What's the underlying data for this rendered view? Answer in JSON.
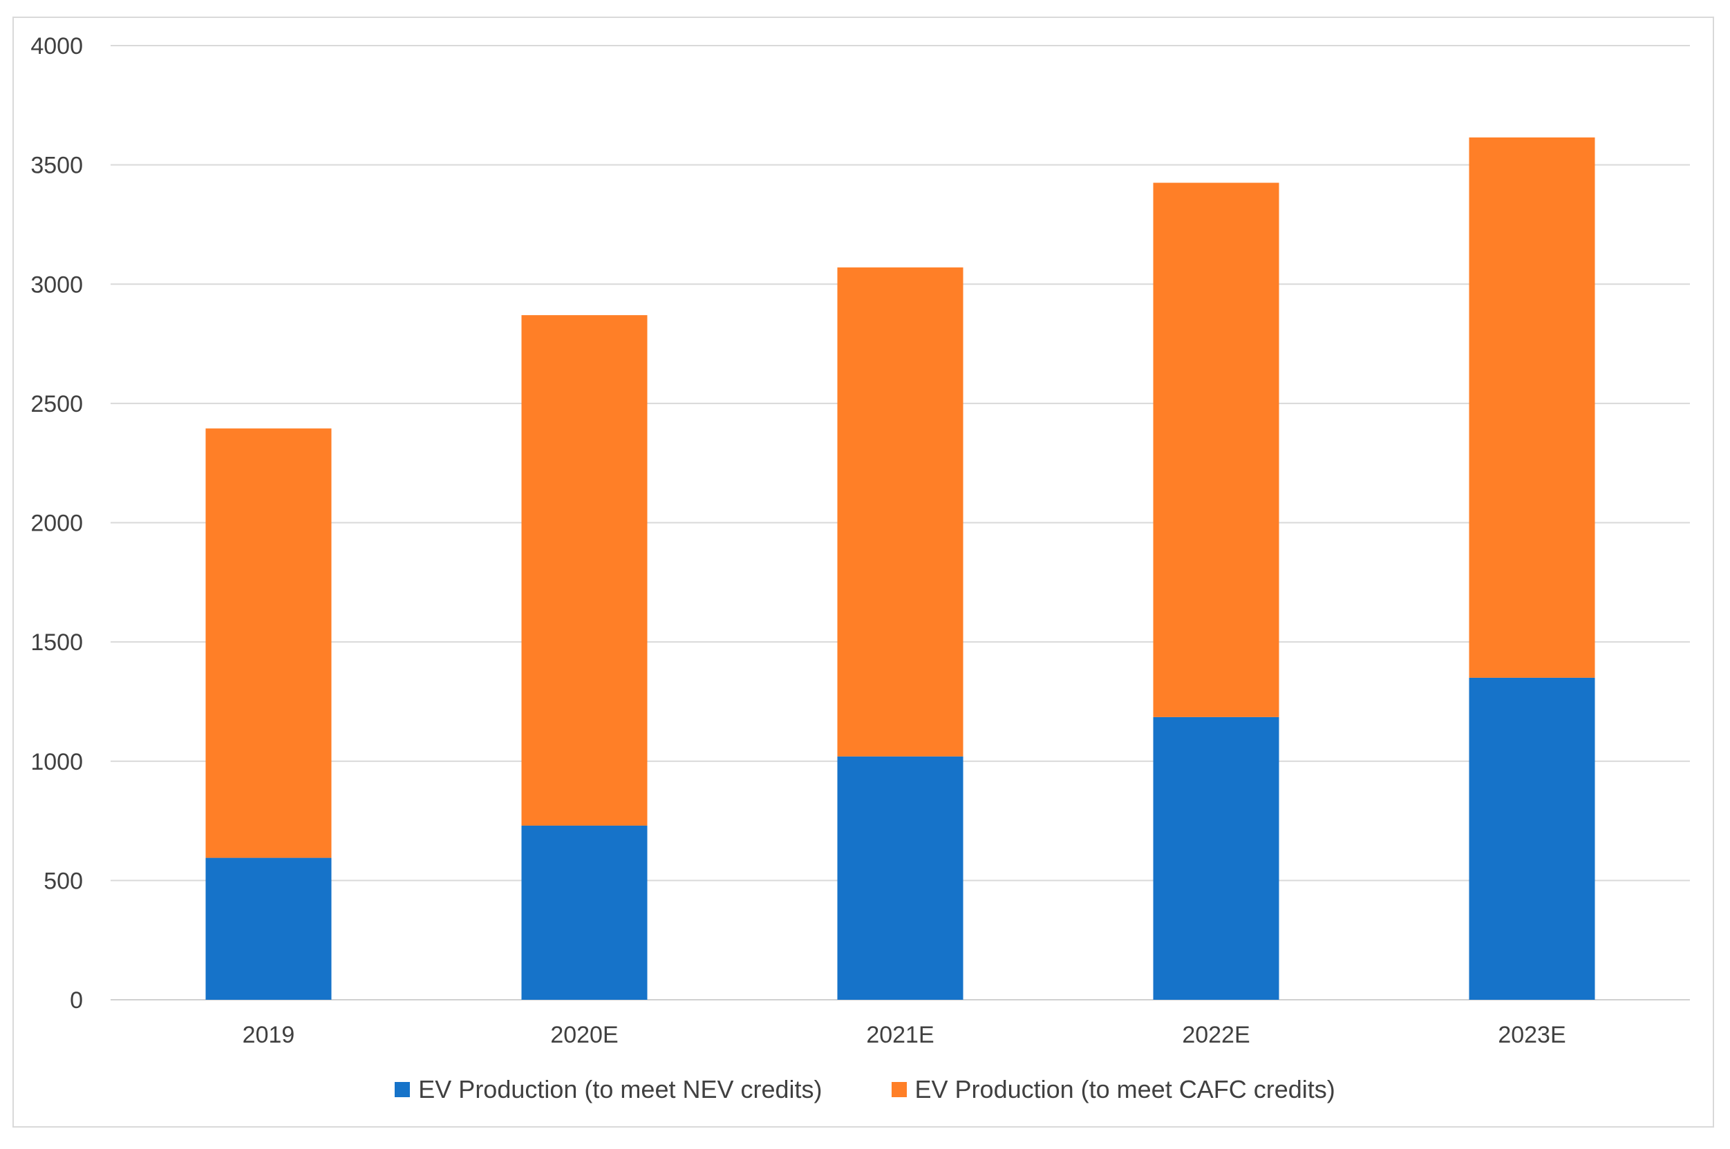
{
  "chart_data": {
    "type": "bar",
    "stacked": true,
    "title": "",
    "xlabel": "",
    "ylabel": "",
    "ylim": [
      0,
      4000
    ],
    "yticks": [
      0,
      500,
      1000,
      1500,
      2000,
      2500,
      3000,
      3500,
      4000
    ],
    "grid": true,
    "legend_position": "bottom",
    "categories": [
      "2019",
      "2020E",
      "2021E",
      "2022E",
      "2023E"
    ],
    "series": [
      {
        "name": "EV Production (to meet NEV credits)",
        "color": "#1673C9",
        "values": [
          595,
          730,
          1020,
          1185,
          1350
        ]
      },
      {
        "name": "EV Production (to meet CAFC credits)",
        "color": "#FF7F27",
        "values": [
          1800,
          2140,
          2050,
          2240,
          2265
        ]
      }
    ]
  }
}
